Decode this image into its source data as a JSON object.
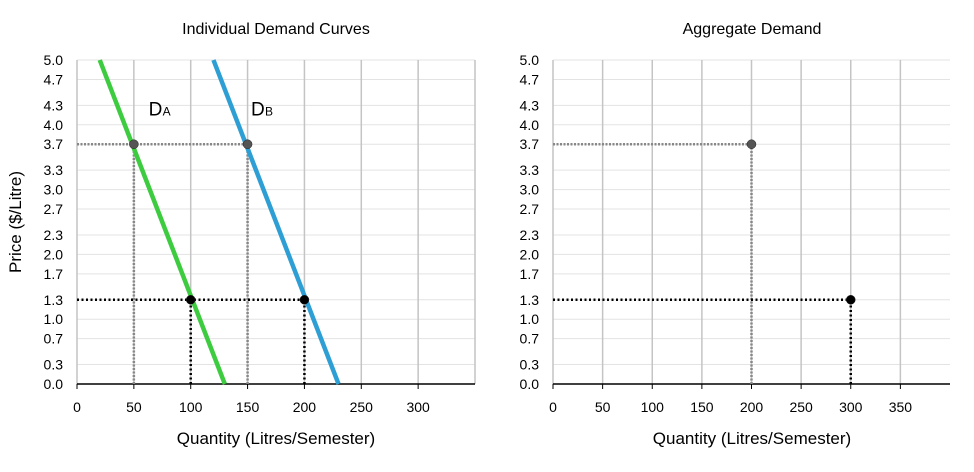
{
  "chart_data": [
    {
      "type": "line",
      "title": "Individual Demand Curves",
      "xlabel": "Quantity (Litres/Semester)",
      "ylabel": "Price ($/Litre)",
      "xlim": [
        0,
        350
      ],
      "ylim": [
        0,
        5.0
      ],
      "x_ticks": [
        0,
        50,
        100,
        150,
        200,
        250,
        300
      ],
      "y_ticks": [
        "0.0",
        "0.3",
        "0.7",
        "1.0",
        "1.3",
        "1.7",
        "2.0",
        "2.3",
        "2.7",
        "3.0",
        "3.3",
        "3.7",
        "4.0",
        "4.3",
        "4.7",
        "5.0"
      ],
      "vertical_grid": [
        50,
        100,
        150,
        200,
        250,
        300,
        350
      ],
      "series": [
        {
          "name": "DA",
          "label_main": "D",
          "label_sub": "A",
          "color": "#3dcc3f",
          "x": [
            20,
            130
          ],
          "y": [
            5.0,
            0.0
          ],
          "label_at": [
            63,
            4.25
          ]
        },
        {
          "name": "DB",
          "label_main": "D",
          "label_sub": "B",
          "color": "#2e9fd4",
          "x": [
            120,
            230
          ],
          "y": [
            5.0,
            0.0
          ],
          "label_at": [
            153,
            4.25
          ]
        }
      ],
      "guides": [
        {
          "kind": "h",
          "x0": 0,
          "x1": 150,
          "y": 3.7,
          "style": "gray"
        },
        {
          "kind": "v",
          "x": 50,
          "y0": 0,
          "y1": 3.7,
          "style": "gray"
        },
        {
          "kind": "v",
          "x": 150,
          "y0": 0,
          "y1": 3.7,
          "style": "gray"
        },
        {
          "kind": "h",
          "x0": 0,
          "x1": 200,
          "y": 1.3,
          "style": "black"
        },
        {
          "kind": "v",
          "x": 100,
          "y0": 0,
          "y1": 1.3,
          "style": "black"
        },
        {
          "kind": "v",
          "x": 200,
          "y0": 0,
          "y1": 1.3,
          "style": "black"
        }
      ],
      "points": [
        {
          "x": 50,
          "y": 3.7,
          "color": "#555555"
        },
        {
          "x": 150,
          "y": 3.7,
          "color": "#555555"
        },
        {
          "x": 100,
          "y": 1.3,
          "color": "#000000"
        },
        {
          "x": 200,
          "y": 1.3,
          "color": "#000000"
        }
      ]
    },
    {
      "type": "scatter",
      "title": "Aggregate Demand",
      "xlabel": "Quantity (Litres/Semester)",
      "ylabel": "",
      "xlim": [
        0,
        400
      ],
      "ylim": [
        0,
        5.0
      ],
      "x_ticks": [
        0,
        50,
        100,
        150,
        200,
        250,
        300,
        350
      ],
      "y_ticks": [
        "0.0",
        "0.3",
        "0.7",
        "1.0",
        "1.3",
        "1.7",
        "2.0",
        "2.3",
        "2.7",
        "3.0",
        "3.3",
        "3.7",
        "4.0",
        "4.3",
        "4.7",
        "5.0"
      ],
      "vertical_grid": [
        50,
        100,
        150,
        200,
        250,
        300,
        350
      ],
      "series": [],
      "guides": [
        {
          "kind": "h",
          "x0": 0,
          "x1": 200,
          "y": 3.7,
          "style": "gray"
        },
        {
          "kind": "v",
          "x": 200,
          "y0": 0,
          "y1": 3.7,
          "style": "gray"
        },
        {
          "kind": "h",
          "x0": 0,
          "x1": 300,
          "y": 1.3,
          "style": "black"
        },
        {
          "kind": "v",
          "x": 300,
          "y0": 0,
          "y1": 1.3,
          "style": "black"
        }
      ],
      "points": [
        {
          "x": 200,
          "y": 3.7,
          "color": "#555555"
        },
        {
          "x": 300,
          "y": 1.3,
          "color": "#000000"
        }
      ]
    }
  ]
}
